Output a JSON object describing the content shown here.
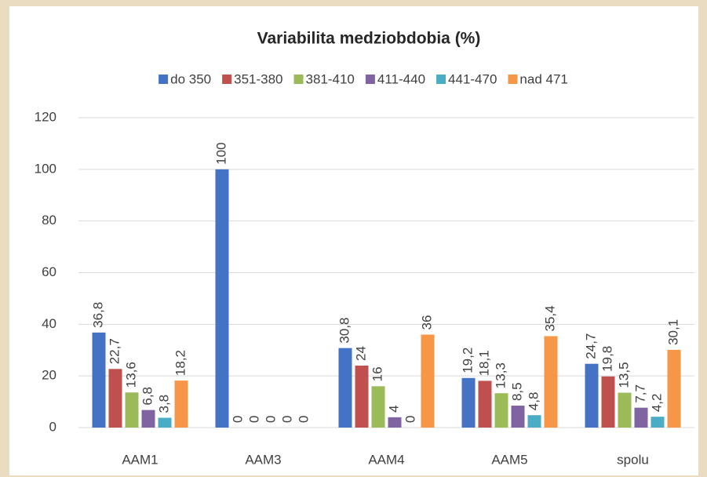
{
  "chart_data": {
    "type": "bar",
    "title": "Variabilita medziobdobia (%)",
    "categories": [
      "AAM1",
      "AAM3",
      "AAM4",
      "AAM5",
      "spolu"
    ],
    "series": [
      {
        "name": "do 350",
        "color": "#4472c4",
        "values": [
          36.8,
          100,
          30.8,
          19.2,
          24.7
        ],
        "value_labels": [
          "36,8",
          "100",
          "30,8",
          "19,2",
          "24,7"
        ]
      },
      {
        "name": "351-380",
        "color": "#c0504d",
        "values": [
          22.7,
          0,
          24,
          18.1,
          19.8
        ],
        "value_labels": [
          "22,7",
          "0",
          "24",
          "18,1",
          "19,8"
        ]
      },
      {
        "name": "381-410",
        "color": "#9bbb59",
        "values": [
          13.6,
          0,
          16,
          13.3,
          13.5
        ],
        "value_labels": [
          "13,6",
          "0",
          "16",
          "13,3",
          "13,5"
        ]
      },
      {
        "name": "411-440",
        "color": "#8064a2",
        "values": [
          6.8,
          0,
          4,
          8.5,
          7.7
        ],
        "value_labels": [
          "6,8",
          "0",
          "4",
          "8,5",
          "7,7"
        ]
      },
      {
        "name": "441-470",
        "color": "#4bacc6",
        "values": [
          3.8,
          0,
          0,
          4.8,
          4.2
        ],
        "value_labels": [
          "3,8",
          "0",
          "0",
          "4,8",
          "4,2"
        ]
      },
      {
        "name": "nad 471",
        "color": "#f79646",
        "values": [
          18.2,
          0,
          36,
          35.4,
          30.1
        ],
        "value_labels": [
          "18,2",
          "0",
          "36",
          "35,4",
          "30,1"
        ]
      }
    ],
    "ylim": [
      0,
      120
    ],
    "yticks": [
      0,
      20,
      40,
      60,
      80,
      100,
      120
    ],
    "grid": true,
    "legend": "top"
  }
}
